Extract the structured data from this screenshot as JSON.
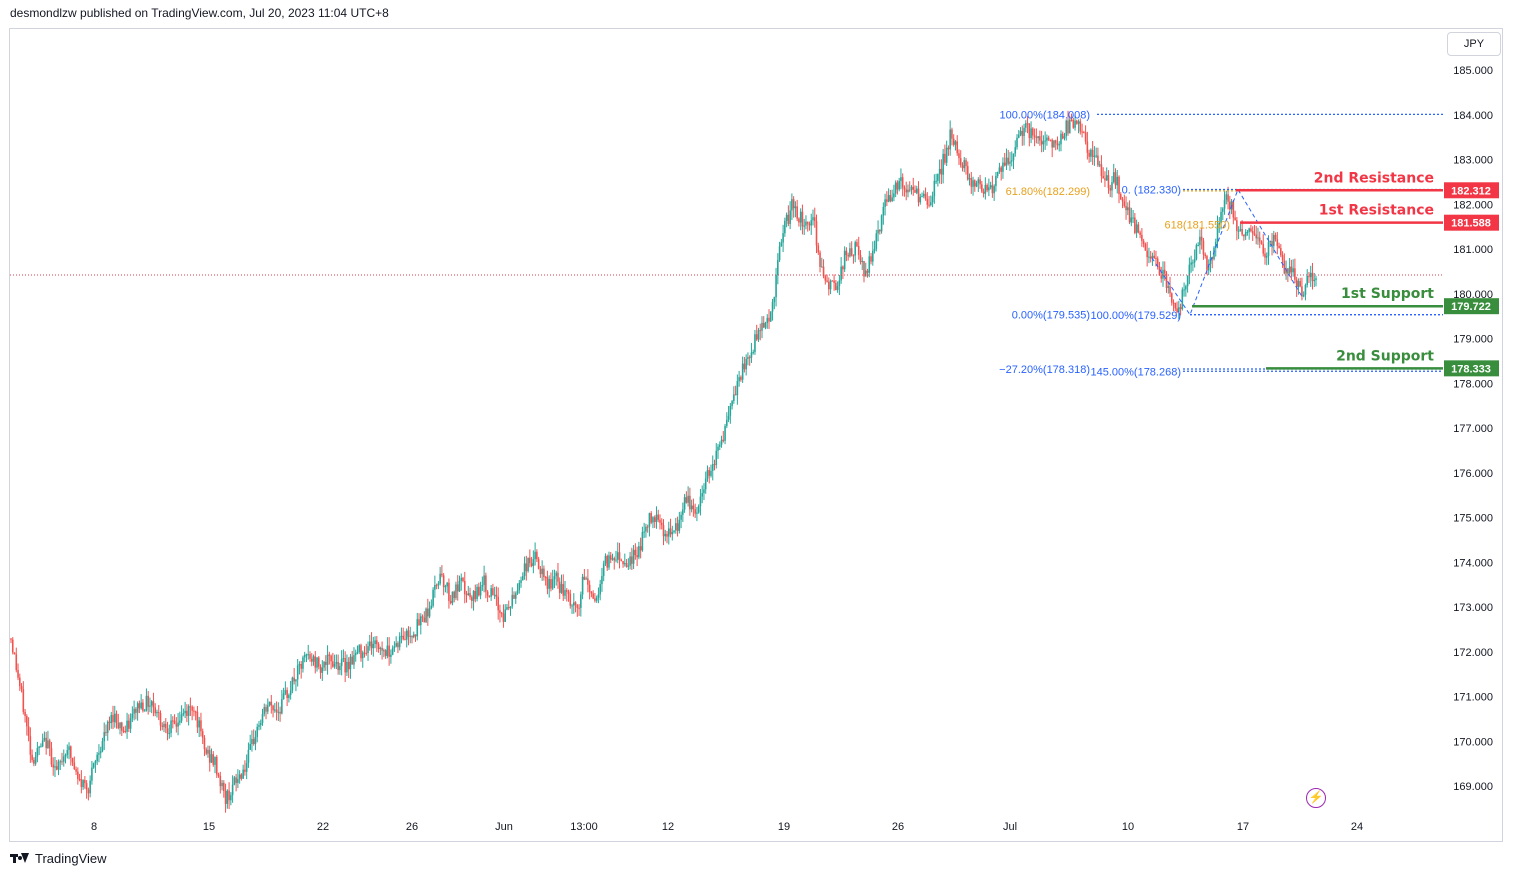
{
  "header": {
    "text": "desmondlzw published on TradingView.com, Jul 20, 2023 11:04 UTC+8"
  },
  "footer": {
    "brand": "TradingView",
    "logo_icon": "tradingview-logo-icon"
  },
  "currency_button": {
    "label": "JPY"
  },
  "colors": {
    "up": "#26a69a",
    "down": "#ef5350",
    "resistance": "#f23645",
    "support": "#388e3c",
    "fib_blue": "#2962ff",
    "fib_orange": "#e6a11e",
    "current": "#d4424d"
  },
  "chart_data": {
    "type": "candlestick",
    "title": "",
    "currency": "JPY",
    "yaxis": {
      "ylim": [
        168.3,
        185.7
      ],
      "ticks": [
        "185.000",
        "184.000",
        "183.000",
        "182.000",
        "181.000",
        "180.000",
        "179.000",
        "178.000",
        "177.000",
        "176.000",
        "175.000",
        "174.000",
        "173.000",
        "172.000",
        "171.000",
        "170.000",
        "169.000"
      ]
    },
    "xaxis": {
      "ticks": [
        "8",
        "15",
        "22",
        "26",
        "Jun",
        "13:00",
        "12",
        "19",
        "26",
        "Jul",
        "10",
        "17",
        "24"
      ]
    },
    "grid": false,
    "current_price": 180.42,
    "price_path": [
      [
        0,
        172.3
      ],
      [
        6,
        171.0
      ],
      [
        12,
        169.6
      ],
      [
        20,
        170.0
      ],
      [
        26,
        169.3
      ],
      [
        32,
        169.9
      ],
      [
        38,
        169.1
      ],
      [
        44,
        169.0
      ],
      [
        50,
        169.8
      ],
      [
        58,
        170.6
      ],
      [
        65,
        170.2
      ],
      [
        72,
        170.8
      ],
      [
        80,
        170.9
      ],
      [
        86,
        170.4
      ],
      [
        92,
        170.3
      ],
      [
        98,
        170.6
      ],
      [
        104,
        170.8
      ],
      [
        110,
        169.8
      ],
      [
        116,
        169.5
      ],
      [
        122,
        168.7
      ],
      [
        128,
        169.1
      ],
      [
        134,
        169.5
      ],
      [
        140,
        170.3
      ],
      [
        146,
        170.8
      ],
      [
        152,
        170.7
      ],
      [
        160,
        171.3
      ],
      [
        168,
        171.9
      ],
      [
        176,
        171.7
      ],
      [
        182,
        171.8
      ],
      [
        190,
        171.7
      ],
      [
        198,
        172.0
      ],
      [
        206,
        172.2
      ],
      [
        214,
        172.0
      ],
      [
        222,
        172.3
      ],
      [
        230,
        172.5
      ],
      [
        238,
        173.0
      ],
      [
        244,
        173.8
      ],
      [
        250,
        173.2
      ],
      [
        256,
        173.5
      ],
      [
        262,
        173.1
      ],
      [
        268,
        173.6
      ],
      [
        274,
        173.2
      ],
      [
        280,
        172.8
      ],
      [
        286,
        173.2
      ],
      [
        292,
        173.9
      ],
      [
        298,
        174.1
      ],
      [
        304,
        173.5
      ],
      [
        310,
        173.6
      ],
      [
        316,
        173.2
      ],
      [
        322,
        172.9
      ],
      [
        326,
        173.7
      ],
      [
        332,
        173.1
      ],
      [
        338,
        174.0
      ],
      [
        344,
        174.2
      ],
      [
        350,
        174.0
      ],
      [
        356,
        174.2
      ],
      [
        362,
        174.9
      ],
      [
        368,
        175.1
      ],
      [
        372,
        174.6
      ],
      [
        378,
        174.7
      ],
      [
        384,
        175.4
      ],
      [
        390,
        175.1
      ],
      [
        396,
        176.0
      ],
      [
        402,
        176.5
      ],
      [
        408,
        177.2
      ],
      [
        414,
        178.1
      ],
      [
        420,
        178.6
      ],
      [
        426,
        179.3
      ],
      [
        432,
        179.5
      ],
      [
        438,
        181.2
      ],
      [
        444,
        182.0
      ],
      [
        450,
        181.6
      ],
      [
        456,
        181.7
      ],
      [
        462,
        180.3
      ],
      [
        468,
        180.1
      ],
      [
        474,
        180.8
      ],
      [
        480,
        181.0
      ],
      [
        486,
        180.4
      ],
      [
        492,
        181.3
      ],
      [
        498,
        182.1
      ],
      [
        504,
        182.5
      ],
      [
        510,
        182.3
      ],
      [
        516,
        182.2
      ],
      [
        522,
        182.0
      ],
      [
        528,
        182.7
      ],
      [
        534,
        183.5
      ],
      [
        540,
        183.0
      ],
      [
        546,
        182.5
      ],
      [
        552,
        182.4
      ],
      [
        558,
        182.4
      ],
      [
        564,
        182.8
      ],
      [
        570,
        183.1
      ],
      [
        576,
        183.8
      ],
      [
        582,
        183.4
      ],
      [
        588,
        183.5
      ],
      [
        594,
        183.3
      ],
      [
        600,
        183.7
      ],
      [
        606,
        183.9
      ],
      [
        612,
        183.2
      ],
      [
        618,
        182.9
      ],
      [
        624,
        182.4
      ],
      [
        628,
        182.6
      ],
      [
        632,
        182.0
      ],
      [
        638,
        181.6
      ],
      [
        644,
        181.0
      ],
      [
        650,
        180.7
      ],
      [
        656,
        180.4
      ],
      [
        660,
        179.8
      ],
      [
        664,
        179.6
      ],
      [
        668,
        180.3
      ],
      [
        672,
        180.8
      ],
      [
        676,
        181.2
      ],
      [
        680,
        180.6
      ],
      [
        684,
        181.0
      ],
      [
        688,
        181.9
      ],
      [
        692,
        182.2
      ],
      [
        696,
        181.6
      ],
      [
        700,
        181.3
      ],
      [
        706,
        181.5
      ],
      [
        712,
        180.9
      ],
      [
        718,
        181.2
      ],
      [
        724,
        180.6
      ],
      [
        730,
        180.4
      ],
      [
        734,
        180.0
      ],
      [
        738,
        180.5
      ],
      [
        742,
        180.4
      ]
    ],
    "levels": [
      {
        "name": "2nd Resistance",
        "value": 182.312,
        "label": "182.312",
        "kind": "resistance"
      },
      {
        "name": "1st Resistance",
        "value": 181.588,
        "label": "181.588",
        "kind": "resistance"
      },
      {
        "name": "1st Support",
        "value": 179.722,
        "label": "179.722",
        "kind": "support"
      },
      {
        "name": "2nd Support",
        "value": 178.333,
        "label": "178.333",
        "kind": "support"
      }
    ],
    "fib_annotations": [
      {
        "text": "100.00%(184.008)",
        "value": 184.008,
        "color": "blue"
      },
      {
        "text": "61.80%(182.299)",
        "value": 182.299,
        "color": "orange"
      },
      {
        "text": "0.00%(179.535)",
        "value": 179.535,
        "color": "blue"
      },
      {
        "text": "−27.20%(178.318)",
        "value": 178.318,
        "color": "blue"
      },
      {
        "text": "0.  (182.330)",
        "value": 182.33,
        "color": "blue"
      },
      {
        "text": "618(181.550)",
        "value": 181.55,
        "color": "orange"
      },
      {
        "text": "100.00%(179.529)",
        "value": 179.529,
        "color": "blue"
      },
      {
        "text": "145.00%(178.268)",
        "value": 178.268,
        "color": "blue"
      }
    ]
  }
}
